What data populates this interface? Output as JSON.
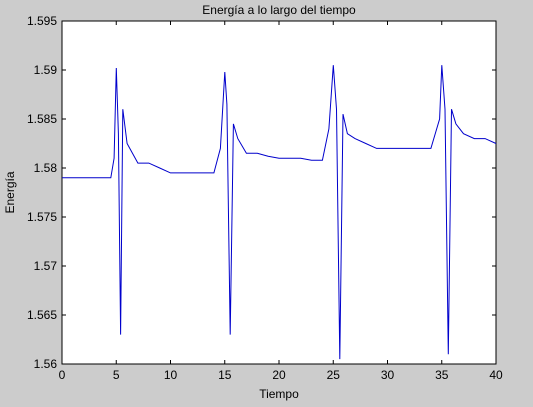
{
  "chart_data": {
    "type": "line",
    "title": "Energía a lo largo del tiempo",
    "xlabel": "Tiempo",
    "ylabel": "Energía",
    "xlim": [
      0,
      40
    ],
    "ylim": [
      1.56,
      1.595
    ],
    "x_ticks": [
      0,
      5,
      10,
      15,
      20,
      25,
      30,
      35,
      40
    ],
    "x_tick_labels": [
      "0",
      "5",
      "10",
      "15",
      "20",
      "25",
      "30",
      "35",
      "40"
    ],
    "y_ticks": [
      1.56,
      1.565,
      1.57,
      1.575,
      1.58,
      1.585,
      1.59,
      1.595
    ],
    "y_tick_labels": [
      "1.56",
      "1.565",
      "1.57",
      "1.575",
      "1.58",
      "1.585",
      "1.59",
      "1.595"
    ],
    "grid": false,
    "series": [
      {
        "color": "#0000cc",
        "x": [
          0,
          4.5,
          4.8,
          5.0,
          5.2,
          5.4,
          5.6,
          6,
          7,
          8,
          9,
          10,
          11,
          12,
          13,
          14,
          14.6,
          15.0,
          15.2,
          15.5,
          15.8,
          16.2,
          17,
          18,
          19,
          20,
          21,
          22,
          23,
          24,
          24.6,
          25.0,
          25.3,
          25.6,
          25.9,
          26.3,
          27,
          28,
          29,
          30,
          31,
          32,
          33,
          34,
          34.8,
          35.0,
          35.3,
          35.6,
          35.9,
          36.3,
          37,
          38,
          39,
          40
        ],
        "y": [
          1.579,
          1.579,
          1.581,
          1.5902,
          1.5835,
          1.563,
          1.586,
          1.5825,
          1.5805,
          1.5805,
          1.58,
          1.5795,
          1.5795,
          1.5795,
          1.5795,
          1.5795,
          1.582,
          1.5898,
          1.5865,
          1.563,
          1.5845,
          1.583,
          1.5815,
          1.5815,
          1.5812,
          1.581,
          1.581,
          1.581,
          1.5808,
          1.5808,
          1.584,
          1.5905,
          1.586,
          1.5605,
          1.5855,
          1.5835,
          1.583,
          1.5825,
          1.582,
          1.582,
          1.582,
          1.582,
          1.582,
          1.582,
          1.585,
          1.5905,
          1.586,
          1.561,
          1.586,
          1.5845,
          1.5835,
          1.583,
          1.583,
          1.5825
        ]
      }
    ]
  }
}
